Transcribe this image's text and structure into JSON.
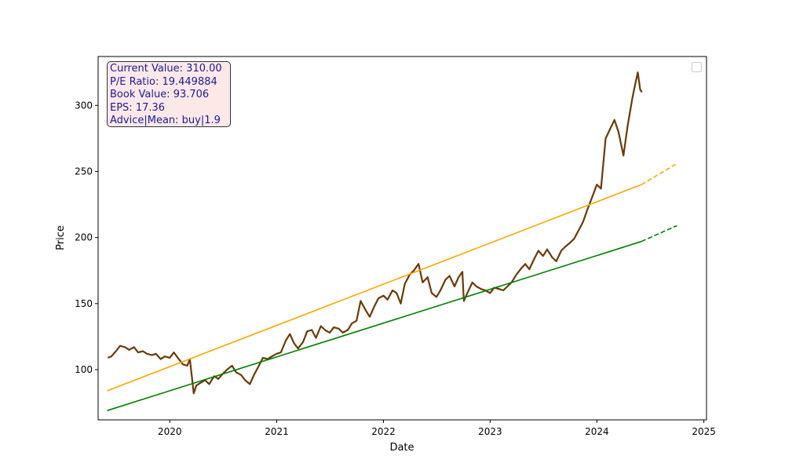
{
  "chart_data": {
    "type": "line",
    "title": "",
    "xlabel": "Date",
    "ylabel": "Price",
    "xlim": [
      "2019-05-01",
      "2025-01-10"
    ],
    "ylim": [
      62,
      337
    ],
    "x_ticks": [
      "2020",
      "2021",
      "2022",
      "2023",
      "2024",
      "2025"
    ],
    "y_ticks": [
      100,
      150,
      200,
      250,
      300
    ],
    "grid": false,
    "legend": "top-right, empty",
    "info_box": [
      "Current Value: 310.00",
      "P/E Ratio: 19.449884",
      "Book Value: 93.706",
      "EPS: 17.36",
      "Advice|Mean: buy|1.9"
    ],
    "series": [
      {
        "color": "#6b3a08",
        "style": "solid",
        "points": [
          [
            "2019-06-03",
            109
          ],
          [
            "2019-06-15",
            110
          ],
          [
            "2019-07-01",
            114
          ],
          [
            "2019-07-15",
            118
          ],
          [
            "2019-08-01",
            117
          ],
          [
            "2019-08-15",
            115
          ],
          [
            "2019-09-01",
            117
          ],
          [
            "2019-09-15",
            113
          ],
          [
            "2019-10-01",
            114
          ],
          [
            "2019-10-15",
            112
          ],
          [
            "2019-11-01",
            111
          ],
          [
            "2019-11-15",
            112
          ],
          [
            "2019-12-01",
            108
          ],
          [
            "2019-12-15",
            110
          ],
          [
            "2020-01-01",
            109
          ],
          [
            "2020-01-15",
            113
          ],
          [
            "2020-02-01",
            108
          ],
          [
            "2020-02-15",
            104
          ],
          [
            "2020-03-01",
            103
          ],
          [
            "2020-03-10",
            108
          ],
          [
            "2020-03-23",
            82
          ],
          [
            "2020-04-01",
            88
          ],
          [
            "2020-04-15",
            90
          ],
          [
            "2020-05-01",
            92
          ],
          [
            "2020-05-15",
            89
          ],
          [
            "2020-06-01",
            95
          ],
          [
            "2020-06-15",
            93
          ],
          [
            "2020-07-01",
            97
          ],
          [
            "2020-07-15",
            100
          ],
          [
            "2020-08-01",
            103
          ],
          [
            "2020-08-15",
            98
          ],
          [
            "2020-09-01",
            96
          ],
          [
            "2020-09-15",
            92
          ],
          [
            "2020-10-01",
            89
          ],
          [
            "2020-10-15",
            96
          ],
          [
            "2020-11-01",
            103
          ],
          [
            "2020-11-15",
            109
          ],
          [
            "2020-12-01",
            108
          ],
          [
            "2020-12-15",
            110
          ],
          [
            "2021-01-01",
            112
          ],
          [
            "2021-01-15",
            113
          ],
          [
            "2021-02-01",
            122
          ],
          [
            "2021-02-15",
            127
          ],
          [
            "2021-03-01",
            120
          ],
          [
            "2021-03-15",
            116
          ],
          [
            "2021-04-01",
            121
          ],
          [
            "2021-04-15",
            129
          ],
          [
            "2021-05-01",
            130
          ],
          [
            "2021-05-15",
            124
          ],
          [
            "2021-06-01",
            133
          ],
          [
            "2021-06-15",
            130
          ],
          [
            "2021-07-01",
            128
          ],
          [
            "2021-07-15",
            132
          ],
          [
            "2021-08-01",
            131
          ],
          [
            "2021-08-15",
            128
          ],
          [
            "2021-09-01",
            130
          ],
          [
            "2021-09-15",
            135
          ],
          [
            "2021-10-01",
            137
          ],
          [
            "2021-10-15",
            152
          ],
          [
            "2021-11-01",
            145
          ],
          [
            "2021-11-15",
            140
          ],
          [
            "2021-12-01",
            148
          ],
          [
            "2021-12-15",
            154
          ],
          [
            "2022-01-01",
            156
          ],
          [
            "2022-01-15",
            153
          ],
          [
            "2022-02-01",
            160
          ],
          [
            "2022-02-15",
            158
          ],
          [
            "2022-03-01",
            150
          ],
          [
            "2022-03-15",
            165
          ],
          [
            "2022-04-01",
            172
          ],
          [
            "2022-04-15",
            175
          ],
          [
            "2022-05-01",
            180
          ],
          [
            "2022-05-15",
            166
          ],
          [
            "2022-06-01",
            170
          ],
          [
            "2022-06-15",
            158
          ],
          [
            "2022-07-01",
            155
          ],
          [
            "2022-07-15",
            160
          ],
          [
            "2022-08-01",
            168
          ],
          [
            "2022-08-15",
            171
          ],
          [
            "2022-09-01",
            163
          ],
          [
            "2022-09-15",
            170
          ],
          [
            "2022-09-28",
            174
          ],
          [
            "2022-10-03",
            152
          ],
          [
            "2022-10-15",
            158
          ],
          [
            "2022-11-01",
            166
          ],
          [
            "2022-11-15",
            163
          ],
          [
            "2022-12-01",
            161
          ],
          [
            "2022-12-15",
            160
          ],
          [
            "2023-01-01",
            158
          ],
          [
            "2023-01-15",
            162
          ],
          [
            "2023-02-01",
            161
          ],
          [
            "2023-02-15",
            160
          ],
          [
            "2023-03-01",
            163
          ],
          [
            "2023-03-15",
            166
          ],
          [
            "2023-04-01",
            172
          ],
          [
            "2023-04-15",
            176
          ],
          [
            "2023-05-01",
            180
          ],
          [
            "2023-05-15",
            176
          ],
          [
            "2023-06-01",
            184
          ],
          [
            "2023-06-15",
            190
          ],
          [
            "2023-07-01",
            186
          ],
          [
            "2023-07-15",
            191
          ],
          [
            "2023-08-01",
            185
          ],
          [
            "2023-08-15",
            182
          ],
          [
            "2023-09-01",
            190
          ],
          [
            "2023-09-15",
            193
          ],
          [
            "2023-10-01",
            196
          ],
          [
            "2023-10-15",
            199
          ],
          [
            "2023-11-01",
            206
          ],
          [
            "2023-11-15",
            212
          ],
          [
            "2023-12-01",
            222
          ],
          [
            "2023-12-15",
            230
          ],
          [
            "2024-01-01",
            240
          ],
          [
            "2024-01-15",
            237
          ],
          [
            "2024-01-31",
            275
          ],
          [
            "2024-02-15",
            282
          ],
          [
            "2024-03-01",
            289
          ],
          [
            "2024-03-15",
            280
          ],
          [
            "2024-04-01",
            262
          ],
          [
            "2024-04-15",
            284
          ],
          [
            "2024-05-01",
            305
          ],
          [
            "2024-05-10",
            315
          ],
          [
            "2024-05-20",
            325
          ],
          [
            "2024-05-28",
            312
          ],
          [
            "2024-06-03",
            310
          ]
        ]
      },
      {
        "color": "#ffa500",
        "style": "solid",
        "points": [
          [
            "2019-06-01",
            84
          ],
          [
            "2024-06-01",
            240
          ]
        ]
      },
      {
        "color": "#ffa500",
        "style": "dashed",
        "points": [
          [
            "2024-06-01",
            240
          ],
          [
            "2024-10-01",
            256
          ]
        ]
      },
      {
        "color": "#008000",
        "style": "solid",
        "points": [
          [
            "2019-06-01",
            69
          ],
          [
            "2024-06-01",
            197
          ]
        ]
      },
      {
        "color": "#008000",
        "style": "dashed",
        "points": [
          [
            "2024-06-01",
            197
          ],
          [
            "2024-10-01",
            209
          ]
        ]
      }
    ],
    "colors": {
      "info_box_bg": "#fde8e8",
      "info_box_text": "#1a1a99",
      "axis": "#000000"
    }
  }
}
